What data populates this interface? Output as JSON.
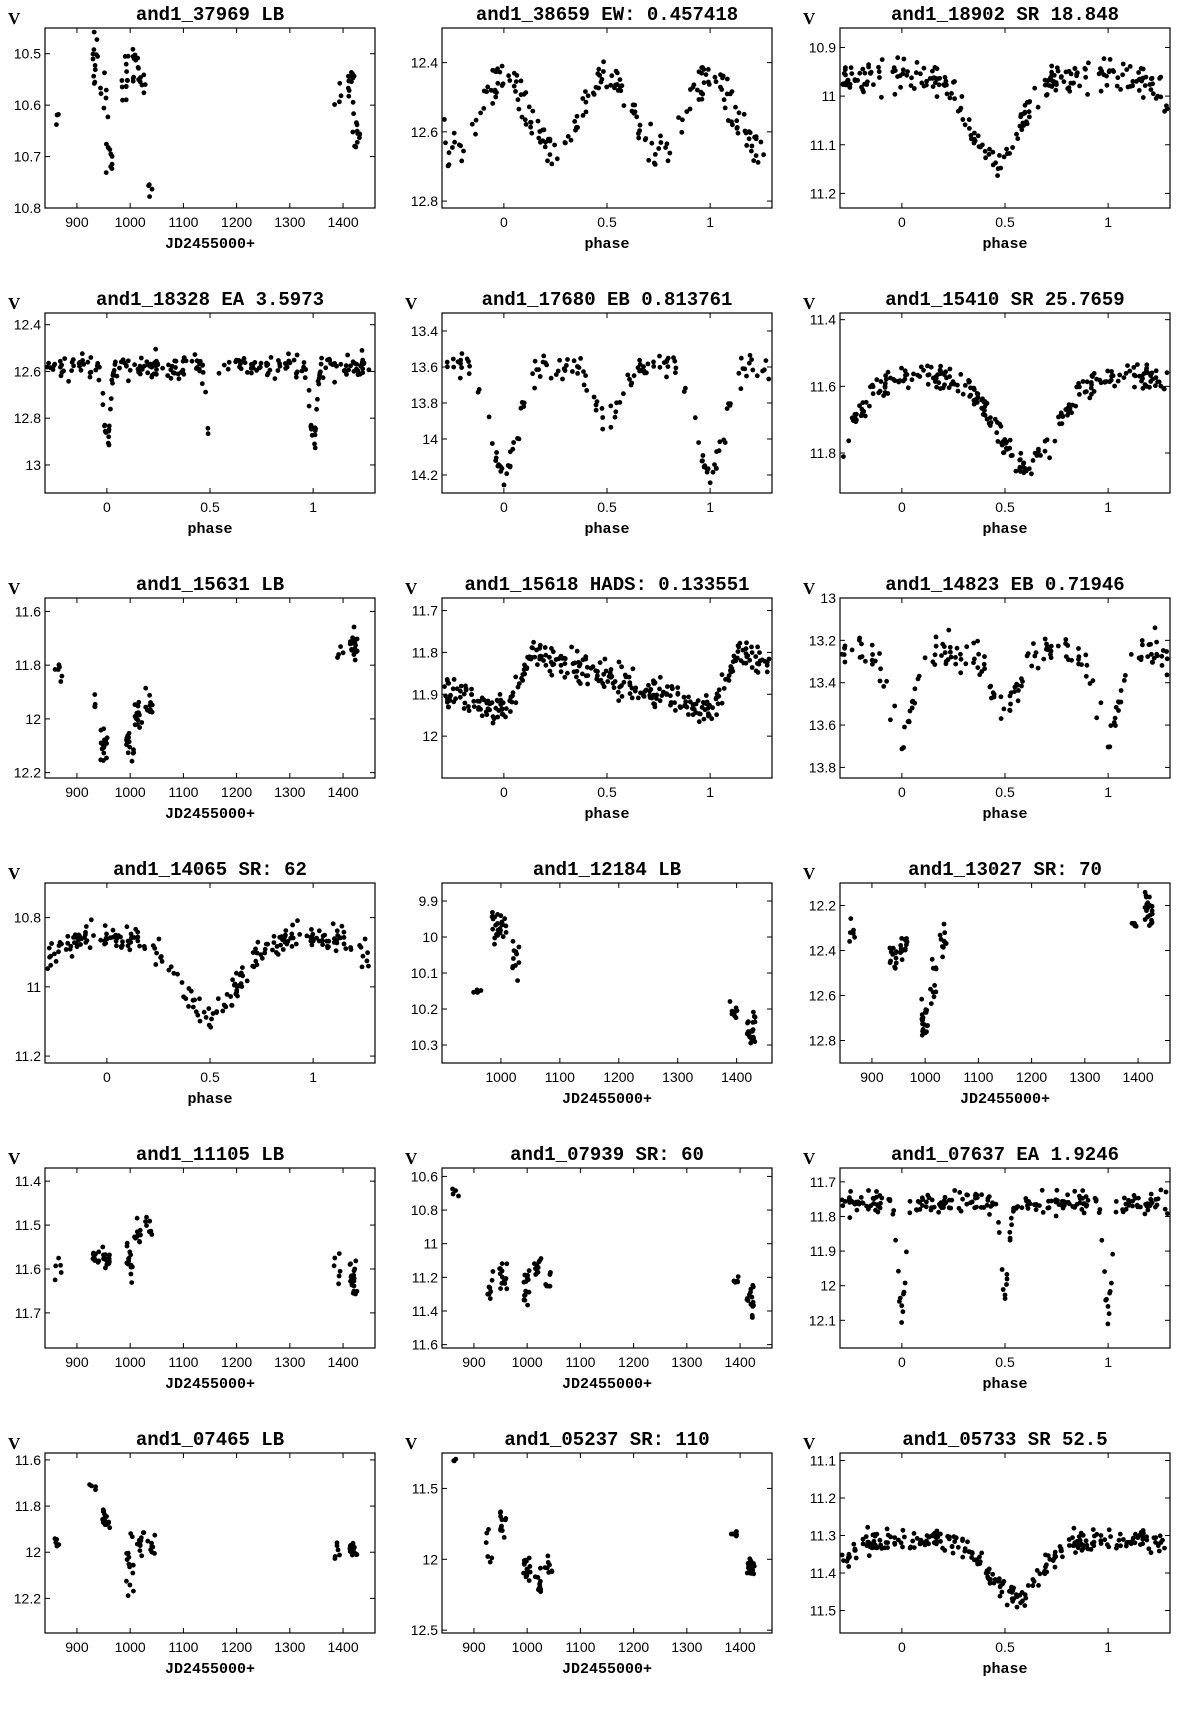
{
  "chart_data": [
    {
      "type": "scatter",
      "title": "and1_37969   LB",
      "ylabel": "V",
      "xlabel": "JD2455000+",
      "xmode": "jd",
      "xlim": [
        840,
        1460
      ],
      "ylim": [
        10.45,
        10.8
      ],
      "yticks": [
        10.5,
        10.6,
        10.7,
        10.8
      ],
      "xticks": [
        900,
        1000,
        1100,
        1200,
        1300,
        1400
      ],
      "clusters": [
        [
          865,
          10.63,
          3,
          0.03
        ],
        [
          935,
          10.52,
          12,
          0.05
        ],
        [
          950,
          10.58,
          6,
          0.04
        ],
        [
          960,
          10.7,
          10,
          0.05
        ],
        [
          990,
          10.55,
          12,
          0.04
        ],
        [
          1010,
          10.52,
          12,
          0.04
        ],
        [
          1025,
          10.55,
          6,
          0.05
        ],
        [
          1035,
          10.76,
          4,
          0.03
        ],
        [
          1390,
          10.58,
          4,
          0.03
        ],
        [
          1415,
          10.55,
          12,
          0.05
        ],
        [
          1425,
          10.66,
          12,
          0.04
        ]
      ]
    },
    {
      "type": "scatter",
      "title": "and1_38659   EW:   0.457418",
      "ylabel": "",
      "xlabel": "phase",
      "xmode": "phase",
      "xlim": [
        -0.3,
        1.3
      ],
      "ylim": [
        12.3,
        12.82
      ],
      "yticks": [
        12.4,
        12.6,
        12.8
      ],
      "xticks": [
        0,
        0.5,
        1
      ],
      "curve": {
        "kind": "ew",
        "base": 12.44,
        "amp": 0.22
      },
      "scatter": 0.05,
      "n": 130
    },
    {
      "type": "scatter",
      "title": "and1_18902   SR   18.848",
      "ylabel": "V",
      "xlabel": "phase",
      "xmode": "phase",
      "xlim": [
        -0.3,
        1.3
      ],
      "ylim": [
        10.86,
        11.23
      ],
      "yticks": [
        10.9,
        11,
        11.1,
        11.2
      ],
      "xticks": [
        0,
        0.5,
        1
      ],
      "curve": {
        "kind": "dip",
        "base": 10.96,
        "amp": 0.17,
        "center": 0.45,
        "width": 0.17
      },
      "scatter": 0.03,
      "n": 150
    },
    {
      "type": "scatter",
      "title": "and1_18328   EA   3.5973",
      "ylabel": "V",
      "xlabel": "phase",
      "xmode": "phase",
      "xlim": [
        -0.3,
        1.3
      ],
      "ylim": [
        12.35,
        13.12
      ],
      "yticks": [
        12.4,
        12.6,
        12.8,
        13
      ],
      "xticks": [
        0,
        0.5,
        1
      ],
      "curve": {
        "kind": "ea",
        "base": 12.58,
        "amp1": 0.35,
        "amp2": 0.35,
        "width": 0.02
      },
      "scatter": 0.05,
      "n": 150
    },
    {
      "type": "scatter",
      "title": "and1_17680   EB   0.813761",
      "ylabel": "V",
      "xlabel": "phase",
      "xmode": "phase",
      "xlim": [
        -0.3,
        1.3
      ],
      "ylim": [
        13.3,
        14.3
      ],
      "yticks": [
        13.4,
        13.6,
        13.8,
        14,
        14.2
      ],
      "xticks": [
        0,
        0.5,
        1
      ],
      "curve": {
        "kind": "eb",
        "base": 13.6,
        "amp1": 0.6,
        "amp2": 0.3
      },
      "scatter": 0.07,
      "n": 100
    },
    {
      "type": "scatter",
      "title": "and1_15410   SR   25.7659",
      "ylabel": "V",
      "xlabel": "phase",
      "xmode": "phase",
      "xlim": [
        -0.3,
        1.3
      ],
      "ylim": [
        11.38,
        11.92
      ],
      "yticks": [
        11.4,
        11.6,
        11.8
      ],
      "xticks": [
        0,
        0.5,
        1
      ],
      "curve": {
        "kind": "dip",
        "base": 11.57,
        "amp": 0.27,
        "center": 0.6,
        "width": 0.2
      },
      "scatter": 0.035,
      "n": 170
    },
    {
      "type": "scatter",
      "title": "and1_15631   LB",
      "ylabel": "V",
      "xlabel": "JD2455000+",
      "xmode": "jd",
      "xlim": [
        840,
        1460
      ],
      "ylim": [
        11.55,
        12.22
      ],
      "yticks": [
        11.6,
        11.8,
        12,
        12.2
      ],
      "xticks": [
        900,
        1000,
        1100,
        1200,
        1300,
        1400
      ],
      "clusters": [
        [
          865,
          11.83,
          6,
          0.05
        ],
        [
          930,
          11.95,
          4,
          0.04
        ],
        [
          950,
          12.1,
          18,
          0.06
        ],
        [
          1000,
          12.08,
          14,
          0.08
        ],
        [
          1015,
          11.98,
          14,
          0.06
        ],
        [
          1035,
          11.95,
          10,
          0.06
        ],
        [
          1395,
          11.76,
          4,
          0.04
        ],
        [
          1420,
          11.72,
          22,
          0.05
        ]
      ]
    },
    {
      "type": "scatter",
      "title": "and1_15618   HADS:   0.133551",
      "ylabel": "V",
      "xlabel": "phase",
      "xmode": "phase",
      "xlim": [
        -0.3,
        1.3
      ],
      "ylim": [
        11.67,
        12.1
      ],
      "yticks": [
        11.7,
        11.8,
        11.9,
        12
      ],
      "xticks": [
        0,
        0.5,
        1
      ],
      "curve": {
        "kind": "puls",
        "base": 11.87,
        "amp": 0.09
      },
      "scatter": 0.035,
      "n": 200
    },
    {
      "type": "scatter",
      "title": "and1_14823   EB   0.71946",
      "ylabel": "V",
      "xlabel": "phase",
      "xmode": "phase",
      "xlim": [
        -0.3,
        1.3
      ],
      "ylim": [
        13.0,
        13.85
      ],
      "yticks": [
        13,
        13.2,
        13.4,
        13.6,
        13.8
      ],
      "xticks": [
        0,
        0.5,
        1
      ],
      "curve": {
        "kind": "eb",
        "base": 13.25,
        "amp1": 0.35,
        "amp2": 0.3
      },
      "scatter": 0.08,
      "n": 110
    },
    {
      "type": "scatter",
      "title": "and1_14065   SR:   62",
      "ylabel": "V",
      "xlabel": "phase",
      "xmode": "phase",
      "xlim": [
        -0.3,
        1.3
      ],
      "ylim": [
        10.7,
        11.22
      ],
      "yticks": [
        10.8,
        11,
        11.2
      ],
      "xticks": [
        0,
        0.5,
        1
      ],
      "curve": {
        "kind": "dip",
        "base": 10.86,
        "amp": 0.22,
        "center": 0.5,
        "width": 0.2
      },
      "scatter": 0.04,
      "n": 140
    },
    {
      "type": "scatter",
      "title": "and1_12184   LB",
      "ylabel": "",
      "xlabel": "JD2455000+",
      "xmode": "jd",
      "xlim": [
        900,
        1460
      ],
      "ylim": [
        9.85,
        10.35
      ],
      "yticks": [
        9.9,
        10,
        10.1,
        10.2,
        10.3
      ],
      "xticks": [
        1000,
        1100,
        1200,
        1300,
        1400
      ],
      "clusters": [
        [
          960,
          10.15,
          5,
          0.04
        ],
        [
          990,
          9.95,
          14,
          0.05
        ],
        [
          1005,
          9.97,
          12,
          0.03
        ],
        [
          1025,
          10.07,
          12,
          0.05
        ],
        [
          1395,
          10.2,
          8,
          0.03
        ],
        [
          1425,
          10.26,
          22,
          0.05
        ]
      ]
    },
    {
      "type": "scatter",
      "title": "and1_13027   SR:   70",
      "ylabel": "V",
      "xlabel": "JD2455000+",
      "xmode": "jd",
      "xlim": [
        840,
        1460
      ],
      "ylim": [
        12.1,
        12.9
      ],
      "yticks": [
        12.2,
        12.4,
        12.6,
        12.8
      ],
      "xticks": [
        900,
        1000,
        1100,
        1200,
        1300,
        1400
      ],
      "clusters": [
        [
          865,
          12.3,
          6,
          0.05
        ],
        [
          940,
          12.42,
          12,
          0.06
        ],
        [
          960,
          12.37,
          14,
          0.06
        ],
        [
          1000,
          12.72,
          20,
          0.08
        ],
        [
          1015,
          12.55,
          10,
          0.08
        ],
        [
          1035,
          12.35,
          10,
          0.06
        ],
        [
          1395,
          12.28,
          5,
          0.04
        ],
        [
          1420,
          12.22,
          22,
          0.08
        ]
      ]
    },
    {
      "type": "scatter",
      "title": "and1_11105   LB",
      "ylabel": "V",
      "xlabel": "JD2455000+",
      "xmode": "jd",
      "xlim": [
        840,
        1460
      ],
      "ylim": [
        11.37,
        11.78
      ],
      "yticks": [
        11.4,
        11.5,
        11.6,
        11.7
      ],
      "xticks": [
        900,
        1000,
        1100,
        1200,
        1300,
        1400
      ],
      "clusters": [
        [
          865,
          11.6,
          5,
          0.04
        ],
        [
          935,
          11.57,
          10,
          0.02
        ],
        [
          955,
          11.57,
          14,
          0.03
        ],
        [
          1000,
          11.6,
          14,
          0.06
        ],
        [
          1015,
          11.52,
          10,
          0.04
        ],
        [
          1035,
          11.5,
          8,
          0.03
        ],
        [
          1390,
          11.6,
          6,
          0.04
        ],
        [
          1420,
          11.62,
          18,
          0.04
        ]
      ]
    },
    {
      "type": "scatter",
      "title": "and1_07939   SR:   60",
      "ylabel": "V",
      "xlabel": "JD2455000+",
      "xmode": "jd",
      "xlim": [
        840,
        1460
      ],
      "ylim": [
        10.55,
        11.62
      ],
      "yticks": [
        10.6,
        10.8,
        11,
        11.2,
        11.4,
        11.6
      ],
      "xticks": [
        900,
        1000,
        1100,
        1200,
        1300,
        1400
      ],
      "clusters": [
        [
          865,
          10.7,
          4,
          0.03
        ],
        [
          930,
          11.25,
          8,
          0.1
        ],
        [
          955,
          11.2,
          14,
          0.1
        ],
        [
          1000,
          11.25,
          14,
          0.1
        ],
        [
          1020,
          11.12,
          10,
          0.08
        ],
        [
          1040,
          11.25,
          6,
          0.08
        ],
        [
          1395,
          11.22,
          6,
          0.03
        ],
        [
          1420,
          11.35,
          16,
          0.12
        ]
      ]
    },
    {
      "type": "scatter",
      "title": "and1_07637   EA   1.9246",
      "ylabel": "V",
      "xlabel": "phase",
      "xmode": "phase",
      "xlim": [
        -0.3,
        1.3
      ],
      "ylim": [
        11.66,
        12.18
      ],
      "yticks": [
        11.7,
        11.8,
        11.9,
        12,
        12.1
      ],
      "xticks": [
        0,
        0.5,
        1
      ],
      "curve": {
        "kind": "ea",
        "base": 11.76,
        "amp1": 0.32,
        "amp2": 0.26,
        "width": 0.025
      },
      "scatter": 0.03,
      "n": 150
    },
    {
      "type": "scatter",
      "title": "and1_07465   LB",
      "ylabel": "V",
      "xlabel": "JD2455000+",
      "xmode": "jd",
      "xlim": [
        840,
        1460
      ],
      "ylim": [
        11.57,
        12.35
      ],
      "yticks": [
        11.6,
        11.8,
        12,
        12.2
      ],
      "xticks": [
        900,
        1000,
        1100,
        1200,
        1300,
        1400
      ],
      "clusters": [
        [
          865,
          11.95,
          5,
          0.03
        ],
        [
          930,
          11.72,
          4,
          0.02
        ],
        [
          955,
          11.85,
          16,
          0.05
        ],
        [
          1000,
          12.05,
          16,
          0.1
        ],
        [
          1020,
          11.97,
          12,
          0.07
        ],
        [
          1040,
          11.97,
          8,
          0.05
        ],
        [
          1390,
          12.0,
          6,
          0.04
        ],
        [
          1420,
          11.98,
          20,
          0.05
        ]
      ]
    },
    {
      "type": "scatter",
      "title": "and1_05237   SR:   110",
      "ylabel": "V",
      "xlabel": "JD2455000+",
      "xmode": "jd",
      "xlim": [
        840,
        1460
      ],
      "ylim": [
        11.25,
        12.52
      ],
      "yticks": [
        11.5,
        12,
        12.5
      ],
      "xticks": [
        900,
        1000,
        1100,
        1200,
        1300,
        1400
      ],
      "clusters": [
        [
          865,
          11.3,
          4,
          0.03
        ],
        [
          930,
          11.9,
          6,
          0.12
        ],
        [
          955,
          11.75,
          12,
          0.08
        ],
        [
          1000,
          12.05,
          16,
          0.12
        ],
        [
          1020,
          12.15,
          12,
          0.12
        ],
        [
          1040,
          12.05,
          8,
          0.08
        ],
        [
          1390,
          11.82,
          6,
          0.06
        ],
        [
          1420,
          12.05,
          20,
          0.08
        ]
      ]
    },
    {
      "type": "scatter",
      "title": "and1_05733   SR   52.5",
      "ylabel": "V",
      "xlabel": "phase",
      "xmode": "phase",
      "xlim": [
        -0.3,
        1.3
      ],
      "ylim": [
        11.08,
        11.56
      ],
      "yticks": [
        11.1,
        11.2,
        11.3,
        11.4,
        11.5
      ],
      "xticks": [
        0,
        0.5,
        1
      ],
      "curve": {
        "kind": "dip",
        "base": 11.31,
        "amp": 0.15,
        "center": 0.55,
        "width": 0.18
      },
      "scatter": 0.03,
      "n": 170
    }
  ]
}
